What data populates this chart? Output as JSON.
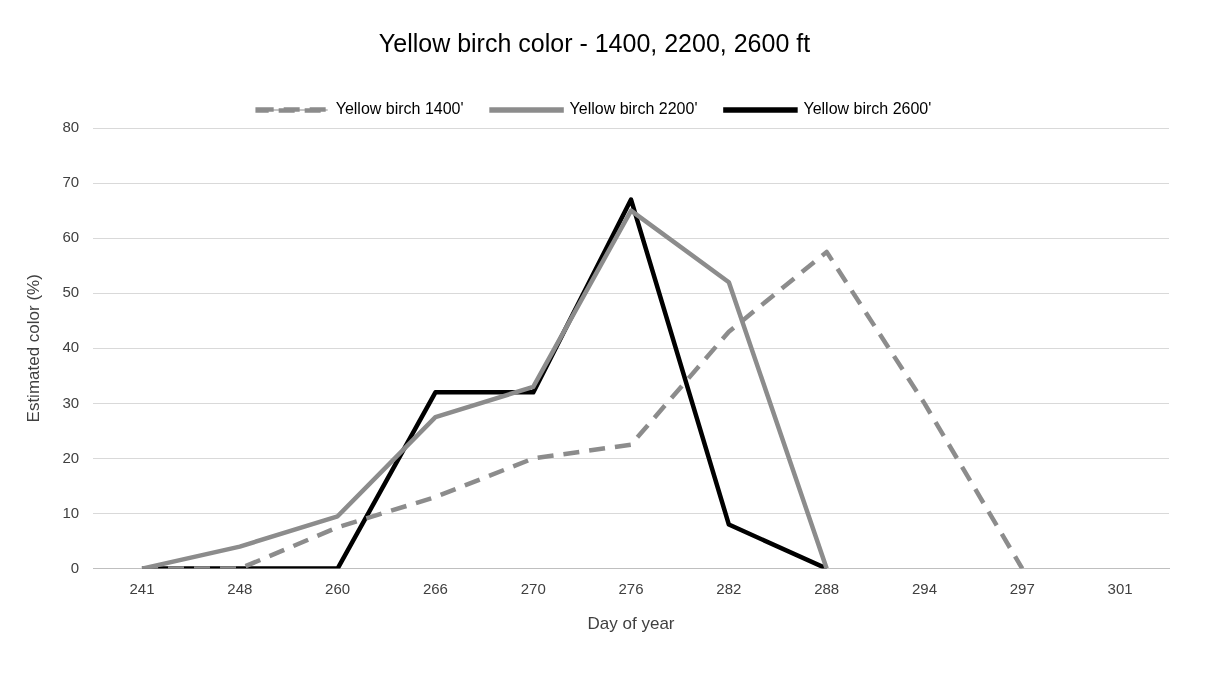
{
  "chart_data": {
    "type": "line",
    "title": "Yellow birch color - 1400, 2200, 2600 ft",
    "xlabel": "Day of year",
    "ylabel": "Estimated color (%)",
    "categories": [
      "241",
      "248",
      "260",
      "266",
      "270",
      "276",
      "282",
      "288",
      "294",
      "297",
      "301"
    ],
    "series": [
      {
        "name": "Yellow birch 1400'",
        "color": "#8c8c8c",
        "line_style": "dashed",
        "values": [
          0,
          0,
          7.5,
          13,
          20,
          22.5,
          43,
          57.5,
          30,
          0,
          null
        ]
      },
      {
        "name": "Yellow birch 2200'",
        "color": "#8c8c8c",
        "line_style": "solid",
        "values": [
          0,
          4,
          9.5,
          27.5,
          33,
          65,
          52,
          0,
          null,
          null,
          null
        ]
      },
      {
        "name": "Yellow birch 2600'",
        "color": "#000000",
        "line_style": "solid",
        "values": [
          0,
          0,
          0,
          32,
          32,
          67,
          8,
          0,
          null,
          null,
          null
        ]
      }
    ],
    "ylim": [
      0,
      80
    ],
    "yticks": [
      0,
      10,
      20,
      30,
      40,
      50,
      60,
      70,
      80
    ],
    "grid": "y",
    "legend": "top",
    "marker": "none"
  }
}
